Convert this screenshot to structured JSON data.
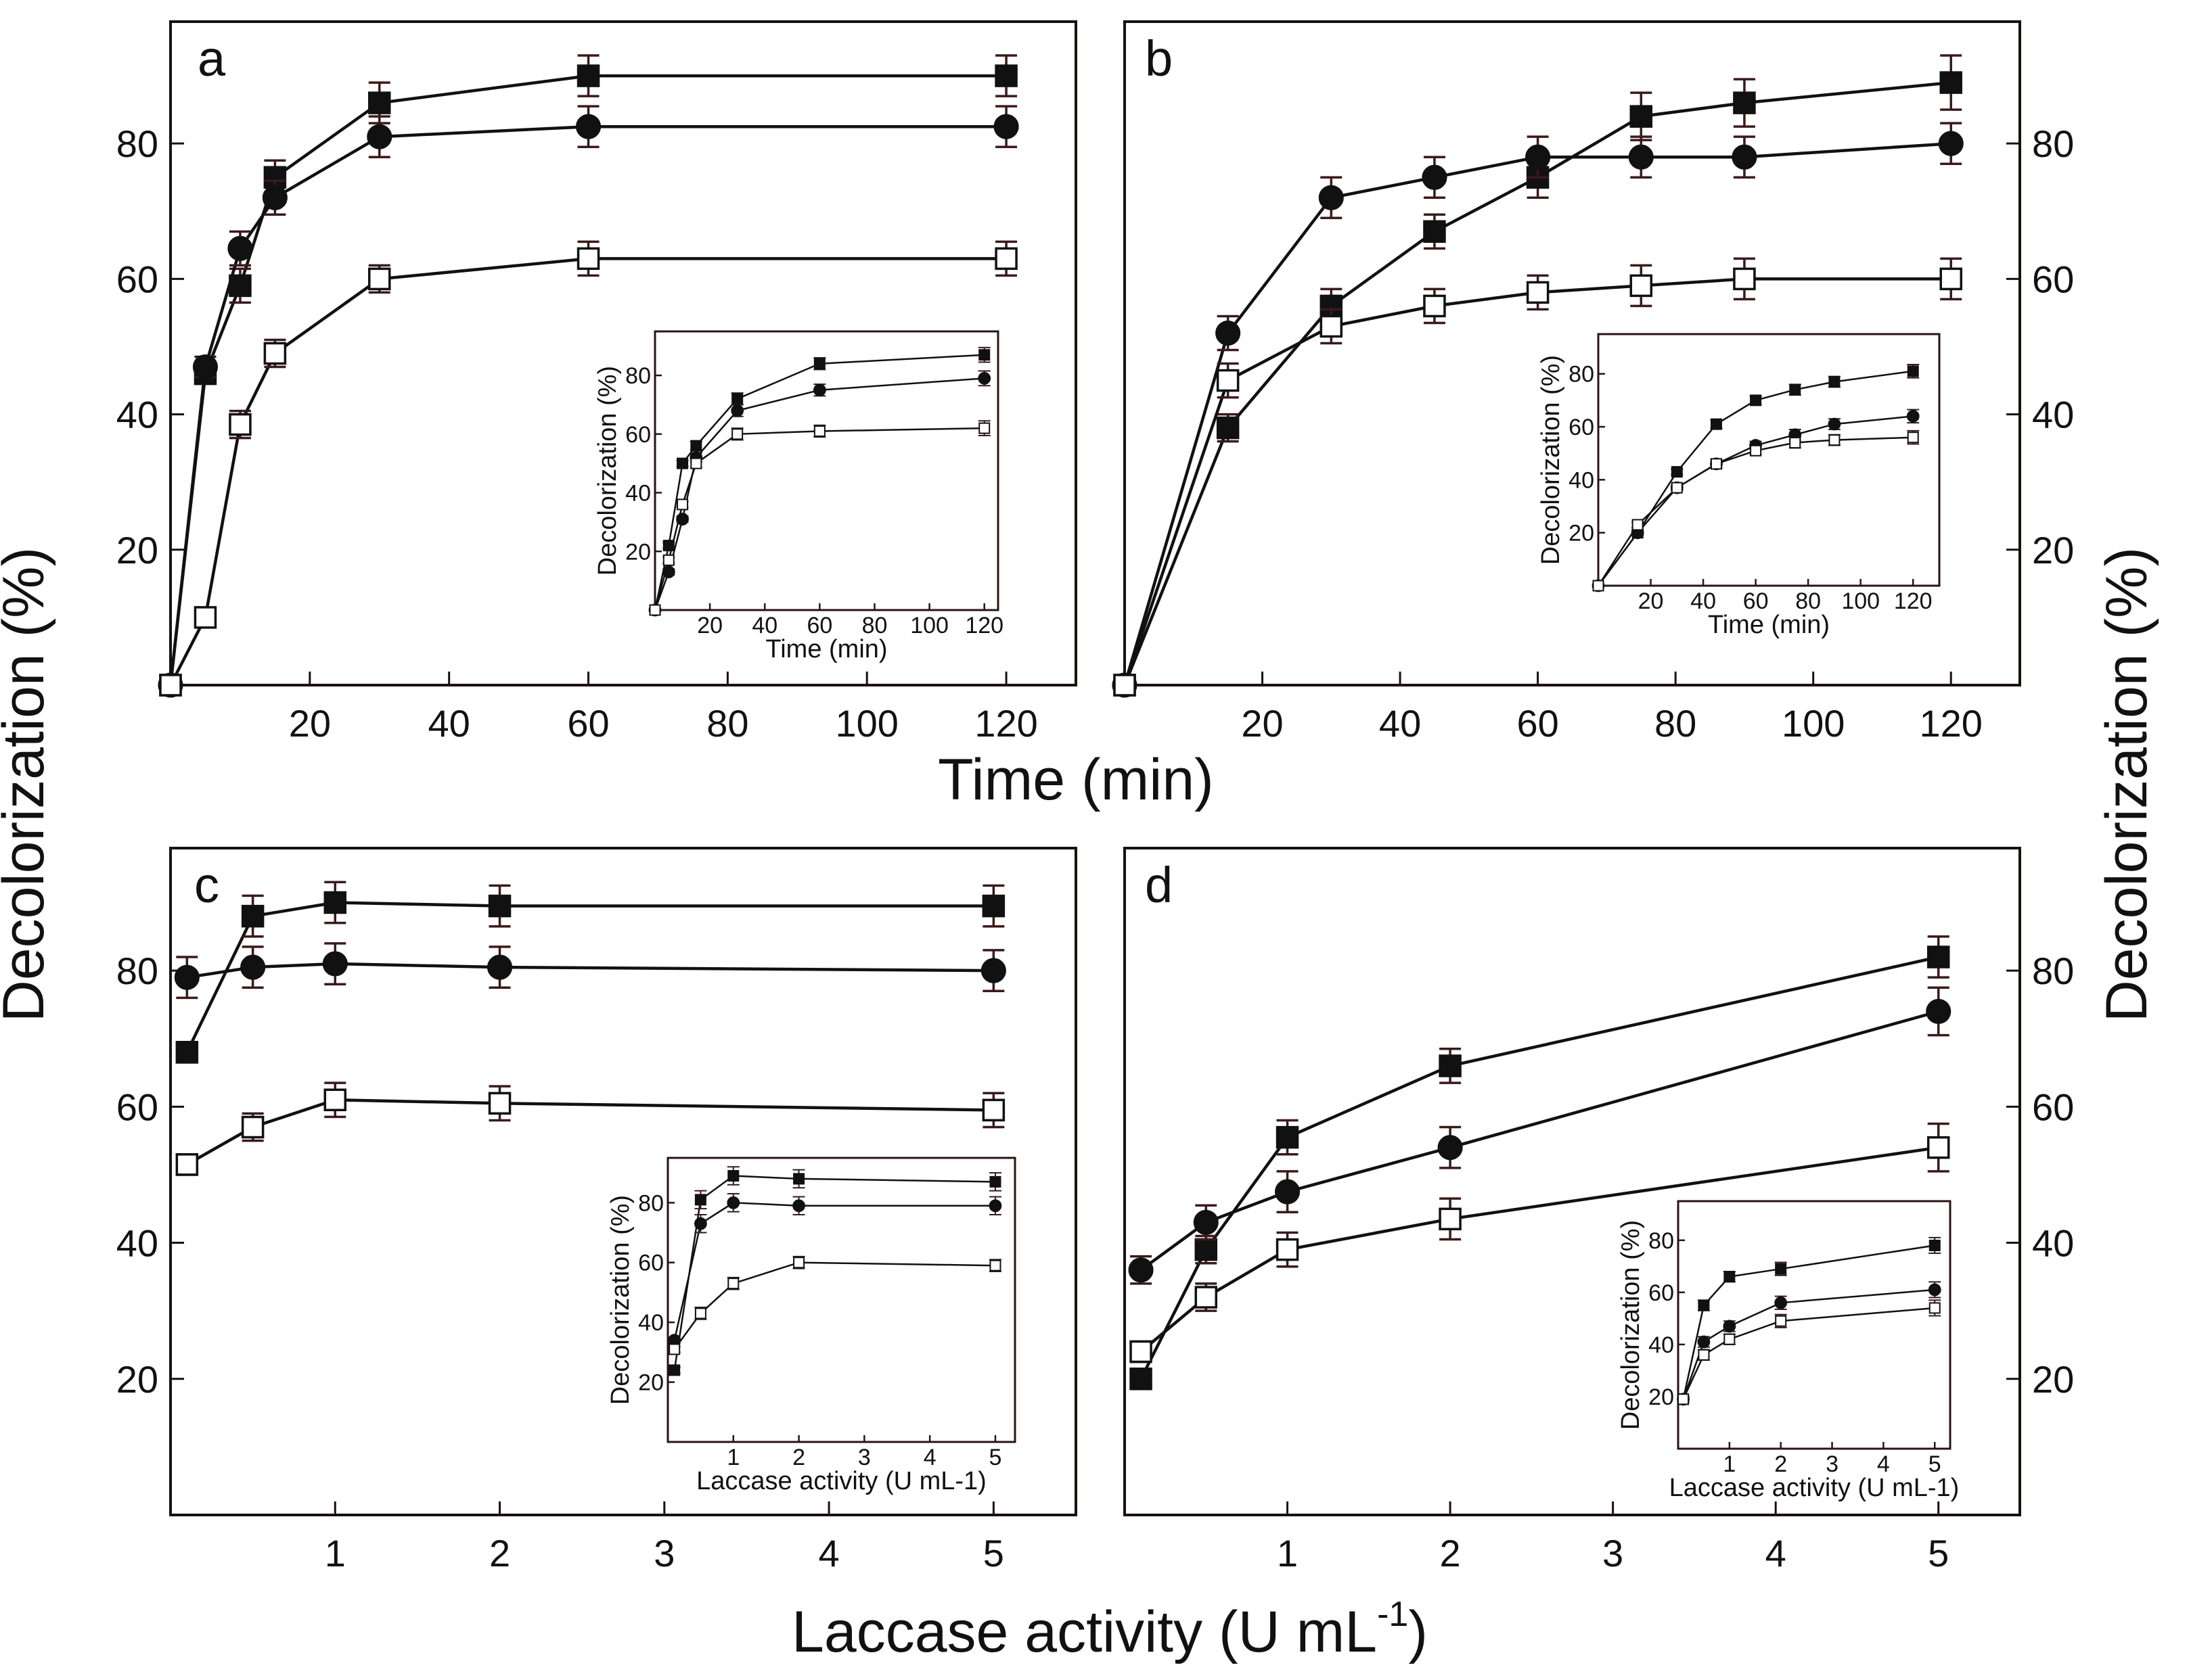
{
  "figure": {
    "left_ylabel": "Decolorization (%)",
    "right_ylabel": "Decolorization (%)",
    "time_xlabel": "Time (min)",
    "laccase_xlabel_main": "Laccase activity (U mL",
    "laccase_xlabel_sup": "-1",
    "laccase_xlabel_close": ")"
  },
  "chart_data": [
    {
      "id": "a",
      "label": "a",
      "type": "line",
      "xlim": [
        0,
        130
      ],
      "ylim": [
        0,
        98
      ],
      "xticks": [
        20,
        40,
        60,
        80,
        100,
        120
      ],
      "yticks": [
        20,
        40,
        60,
        80
      ],
      "series": [
        {
          "name": "filled-square",
          "x": [
            0,
            5,
            10,
            15,
            30,
            60,
            120
          ],
          "y": [
            0,
            46,
            59,
            75,
            86,
            90,
            90
          ],
          "err": [
            0,
            1.5,
            2.5,
            2.5,
            3,
            3,
            3
          ]
        },
        {
          "name": "filled-circle",
          "x": [
            0,
            5,
            10,
            15,
            30,
            60,
            120
          ],
          "y": [
            0,
            47,
            64.5,
            72,
            81,
            82.5,
            82.5
          ],
          "err": [
            0,
            1.5,
            2.5,
            2.5,
            3,
            3,
            3
          ]
        },
        {
          "name": "open-square",
          "x": [
            0,
            5,
            10,
            15,
            30,
            60,
            120
          ],
          "y": [
            0,
            10,
            38.5,
            49,
            60,
            63,
            63
          ],
          "err": [
            0,
            1,
            2,
            2,
            2,
            2.5,
            2.5
          ]
        }
      ],
      "inset": {
        "xlabel": "Time (min)",
        "ylabel": "Decolorization (%)",
        "xlim": [
          0,
          125
        ],
        "ylim": [
          0,
          95
        ],
        "xticks": [
          20,
          40,
          60,
          80,
          100,
          120
        ],
        "yticks": [
          20,
          40,
          60,
          80
        ],
        "series": [
          {
            "name": "filled-square",
            "x": [
              0,
              5,
              10,
              15,
              30,
              60,
              120
            ],
            "y": [
              0,
              22,
              50,
              56,
              72,
              84,
              87
            ],
            "err": [
              0,
              1,
              1,
              1.5,
              2,
              2,
              2.5
            ]
          },
          {
            "name": "filled-circle",
            "x": [
              0,
              5,
              10,
              15,
              30,
              60,
              120
            ],
            "y": [
              0,
              13,
              31,
              52,
              68,
              75,
              79
            ],
            "err": [
              0,
              1,
              1,
              1.5,
              2,
              2,
              2.5
            ]
          },
          {
            "name": "open-square",
            "x": [
              0,
              5,
              10,
              15,
              30,
              60,
              120
            ],
            "y": [
              0,
              17,
              36,
              50,
              60,
              61,
              62
            ],
            "err": [
              0,
              1,
              1,
              1.5,
              2,
              2,
              2.5
            ]
          }
        ]
      }
    },
    {
      "id": "b",
      "label": "b",
      "type": "line",
      "xlim": [
        0,
        130
      ],
      "ylim": [
        0,
        98
      ],
      "xticks": [
        20,
        40,
        60,
        80,
        100,
        120
      ],
      "yticks": [
        20,
        40,
        60,
        80
      ],
      "series": [
        {
          "name": "filled-square",
          "x": [
            0,
            15,
            30,
            45,
            60,
            75,
            90,
            120
          ],
          "y": [
            0,
            38,
            56,
            67,
            75,
            84,
            86,
            89
          ],
          "err": [
            0,
            2,
            2.5,
            2.5,
            3,
            3.5,
            3.5,
            4
          ]
        },
        {
          "name": "filled-circle",
          "x": [
            0,
            15,
            30,
            45,
            60,
            75,
            90,
            120
          ],
          "y": [
            0,
            52,
            72,
            75,
            78,
            78,
            78,
            80
          ],
          "err": [
            0,
            2.5,
            3,
            3,
            3,
            3,
            3,
            3
          ]
        },
        {
          "name": "open-square",
          "x": [
            0,
            15,
            30,
            45,
            60,
            75,
            90,
            120
          ],
          "y": [
            0,
            45,
            53,
            56,
            58,
            59,
            60,
            60
          ],
          "err": [
            0,
            2.5,
            2.5,
            2.5,
            2.5,
            3,
            3,
            3
          ]
        }
      ],
      "inset": {
        "xlabel": "Time (min)",
        "ylabel": "Decolorization (%)",
        "xlim": [
          0,
          130
        ],
        "ylim": [
          0,
          95
        ],
        "xticks": [
          20,
          40,
          60,
          80,
          100,
          120
        ],
        "yticks": [
          20,
          40,
          60,
          80
        ],
        "series": [
          {
            "name": "filled-square",
            "x": [
              0,
              15,
              30,
              45,
              60,
              75,
              90,
              120
            ],
            "y": [
              0,
              20,
              43,
              61,
              70,
              74,
              77,
              81
            ],
            "err": [
              0,
              1,
              1,
              1.5,
              1.5,
              2,
              2,
              2.5
            ]
          },
          {
            "name": "filled-circle",
            "x": [
              0,
              15,
              30,
              45,
              60,
              75,
              90,
              120
            ],
            "y": [
              0,
              20,
              37,
              46,
              53,
              57,
              61,
              64
            ],
            "err": [
              0,
              1,
              1,
              1.5,
              1.5,
              2,
              2,
              2.5
            ]
          },
          {
            "name": "open-square",
            "x": [
              0,
              15,
              30,
              45,
              60,
              75,
              90,
              120
            ],
            "y": [
              0,
              23,
              37,
              46,
              51,
              54,
              55,
              56
            ],
            "err": [
              0,
              1,
              1,
              1.5,
              1.5,
              2,
              2,
              2.5
            ]
          }
        ]
      }
    },
    {
      "id": "c",
      "label": "c",
      "type": "line",
      "xlim": [
        0,
        5.5
      ],
      "ylim": [
        0,
        98
      ],
      "xticks": [
        1,
        2,
        3,
        4,
        5
      ],
      "yticks": [
        20,
        40,
        60,
        80
      ],
      "series": [
        {
          "name": "filled-square",
          "x": [
            0.1,
            0.5,
            1,
            2,
            5
          ],
          "y": [
            68,
            88,
            90,
            89.5,
            89.5
          ],
          "err": [
            1.5,
            3,
            3,
            3,
            3
          ]
        },
        {
          "name": "filled-circle",
          "x": [
            0.1,
            0.5,
            1,
            2,
            5
          ],
          "y": [
            79,
            80.5,
            81,
            80.5,
            80
          ],
          "err": [
            3,
            3,
            3,
            3,
            3
          ]
        },
        {
          "name": "open-square",
          "x": [
            0.1,
            0.5,
            1,
            2,
            5
          ],
          "y": [
            51.5,
            57,
            61,
            60.5,
            59.5
          ],
          "err": [
            1.5,
            2,
            2.5,
            2.5,
            2.5
          ]
        }
      ],
      "inset": {
        "xlabel": "Laccase activity (U mL-1)",
        "ylabel": "Decolorization (%)",
        "xlim": [
          0,
          5.3
        ],
        "ylim": [
          0,
          95
        ],
        "xticks": [
          1,
          2,
          3,
          4,
          5
        ],
        "yticks": [
          20,
          40,
          60,
          80
        ],
        "series": [
          {
            "name": "filled-square",
            "x": [
              0.1,
              0.5,
              1,
              2,
              5
            ],
            "y": [
              24,
              81,
              89,
              88,
              87
            ],
            "err": [
              1,
              3,
              3,
              3,
              3
            ]
          },
          {
            "name": "filled-circle",
            "x": [
              0.1,
              0.5,
              1,
              2,
              5
            ],
            "y": [
              34,
              73,
              80,
              79,
              79
            ],
            "err": [
              1,
              3,
              3,
              3,
              3
            ]
          },
          {
            "name": "open-square",
            "x": [
              0.1,
              0.5,
              1,
              2,
              5
            ],
            "y": [
              31,
              43,
              53,
              60,
              59
            ],
            "err": [
              1,
              2,
              2,
              2,
              2
            ]
          }
        ]
      }
    },
    {
      "id": "d",
      "label": "d",
      "type": "line",
      "xlim": [
        0,
        5.5
      ],
      "ylim": [
        0,
        98
      ],
      "xticks": [
        1,
        2,
        3,
        4,
        5
      ],
      "yticks": [
        20,
        40,
        60,
        80
      ],
      "series": [
        {
          "name": "filled-square",
          "x": [
            0.1,
            0.5,
            1,
            2,
            5
          ],
          "y": [
            20,
            39,
            55.5,
            66,
            82
          ],
          "err": [
            1,
            2,
            2.5,
            2.5,
            3
          ]
        },
        {
          "name": "filled-circle",
          "x": [
            0.1,
            0.5,
            1,
            2,
            5
          ],
          "y": [
            36,
            43,
            47.5,
            54,
            74
          ],
          "err": [
            2,
            2.5,
            3,
            3,
            3.5
          ]
        },
        {
          "name": "open-square",
          "x": [
            0.1,
            0.5,
            1,
            2,
            5
          ],
          "y": [
            24,
            32,
            39,
            43.5,
            54
          ],
          "err": [
            1.5,
            2,
            2.5,
            3,
            3.5
          ]
        }
      ],
      "inset": {
        "xlabel": "Laccase activity (U mL-1)",
        "ylabel": "Decolorization (%)",
        "xlim": [
          0,
          5.3
        ],
        "ylim": [
          0,
          95
        ],
        "xticks": [
          1,
          2,
          3,
          4,
          5
        ],
        "yticks": [
          20,
          40,
          60,
          80
        ],
        "series": [
          {
            "name": "filled-square",
            "x": [
              0.1,
              0.5,
              1,
              2,
              5
            ],
            "y": [
              19,
              55,
              66,
              69,
              78
            ],
            "err": [
              1,
              2,
              2,
              2.5,
              3
            ]
          },
          {
            "name": "filled-circle",
            "x": [
              0.1,
              0.5,
              1,
              2,
              5
            ],
            "y": [
              19,
              41,
              47,
              56,
              61
            ],
            "err": [
              1,
              2,
              2,
              2.5,
              3
            ]
          },
          {
            "name": "open-square",
            "x": [
              0.1,
              0.5,
              1,
              2,
              5
            ],
            "y": [
              19,
              36,
              42,
              49,
              54
            ],
            "err": [
              1,
              2,
              2,
              2.5,
              3
            ]
          }
        ]
      }
    }
  ]
}
